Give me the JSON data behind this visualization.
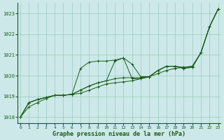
{
  "title": "Graphe pression niveau de la mer (hPa)",
  "xlabel_hours": [
    0,
    1,
    2,
    3,
    4,
    5,
    6,
    7,
    8,
    9,
    10,
    11,
    12,
    13,
    14,
    15,
    16,
    17,
    18,
    19,
    20,
    21,
    22,
    23
  ],
  "ylim": [
    1017.7,
    1023.5
  ],
  "yticks": [
    1018,
    1019,
    1020,
    1021,
    1022,
    1023
  ],
  "background_color": "#cce8e8",
  "grid_color": "#99ccbb",
  "line_color": "#1a5c1a",
  "figsize": [
    3.2,
    2.0
  ],
  "dpi": 100,
  "series": [
    [
      1018.0,
      1018.5,
      1018.7,
      1018.9,
      1019.05,
      1019.05,
      1019.1,
      1019.15,
      1019.3,
      1019.45,
      1019.6,
      1019.65,
      1019.7,
      1019.75,
      1019.85,
      1019.95,
      1020.1,
      1020.25,
      1020.35,
      1020.4,
      1020.45,
      1021.1,
      1022.35,
      1023.2
    ],
    [
      1018.0,
      1018.7,
      1018.85,
      1018.95,
      1019.05,
      1019.05,
      1019.1,
      1020.35,
      1020.65,
      1020.7,
      1020.7,
      1020.75,
      1020.85,
      1020.55,
      1019.95,
      1019.95,
      1020.25,
      1020.45,
      1020.45,
      1020.4,
      1020.45,
      1021.1,
      1022.35,
      1023.2
    ],
    [
      1018.0,
      1018.7,
      1018.85,
      1018.95,
      1019.05,
      1019.05,
      1019.1,
      1019.3,
      1019.5,
      1019.65,
      1019.75,
      1020.7,
      1020.85,
      1019.85,
      1019.85,
      1019.95,
      1020.25,
      1020.45,
      1020.45,
      1020.35,
      1020.4,
      1021.1,
      1022.35,
      1023.2
    ],
    [
      1018.0,
      1018.7,
      1018.85,
      1018.95,
      1019.05,
      1019.05,
      1019.1,
      1019.3,
      1019.5,
      1019.65,
      1019.75,
      1019.85,
      1019.9,
      1019.9,
      1019.9,
      1019.95,
      1020.25,
      1020.45,
      1020.45,
      1020.35,
      1020.4,
      1021.1,
      1022.35,
      1023.2
    ]
  ]
}
